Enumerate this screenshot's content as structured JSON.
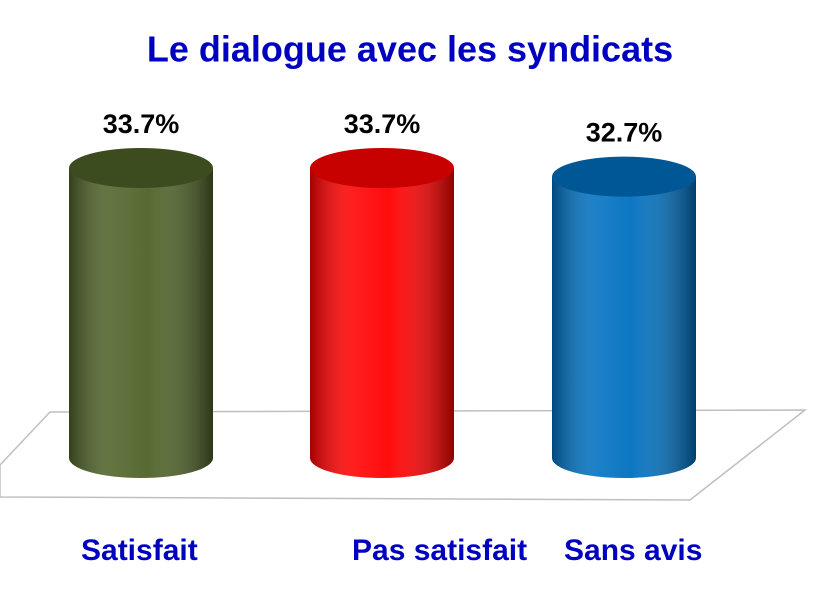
{
  "chart_data": {
    "type": "bar",
    "title": "Le dialogue avec les syndicats",
    "categories": [
      "Satisfait",
      "Pas satisfait",
      "Sans avis"
    ],
    "values": [
      33.7,
      33.7,
      32.7
    ],
    "value_labels": [
      "33.7%",
      "33.7%",
      "32.7%"
    ],
    "colors": [
      "#4f6228",
      "#ff0000",
      "#0070c0"
    ]
  }
}
